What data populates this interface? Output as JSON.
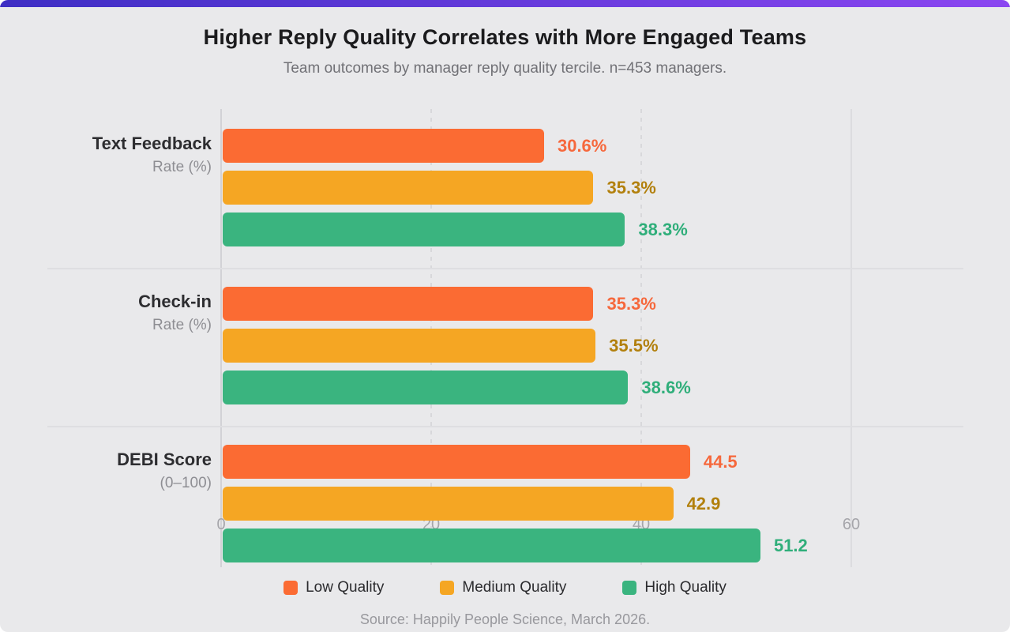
{
  "accent": {
    "gradient_from": "#3e2ec4",
    "gradient_to": "#8b46f1"
  },
  "chart_data": {
    "type": "bar",
    "orientation": "horizontal",
    "title": "Higher Reply Quality Correlates with More Engaged Teams",
    "subtitle": "Team outcomes by manager reply quality tercile. n=453 managers.",
    "categories": [
      {
        "name": "Text Feedback Rate (%)",
        "lines": [
          "Text Feedback",
          "Rate (%)"
        ]
      },
      {
        "name": "Check-in Rate (%)",
        "lines": [
          "Check-in",
          "Rate (%)"
        ]
      },
      {
        "name": "DEBI Score (0–100)",
        "lines": [
          "DEBI Score",
          "(0–100)"
        ]
      }
    ],
    "series": [
      {
        "name": "Low Quality",
        "color": "#fb6b33",
        "value_label_color": "#f6683c",
        "values": [
          30.6,
          35.3,
          44.5
        ],
        "value_labels": [
          "30.6%",
          "35.3%",
          "44.5"
        ]
      },
      {
        "name": "Medium Quality",
        "color": "#f5a623",
        "value_label_color": "#b2800d",
        "values": [
          35.3,
          35.5,
          42.9
        ],
        "value_labels": [
          "35.3%",
          "35.5%",
          "42.9"
        ]
      },
      {
        "name": "High Quality",
        "color": "#3ab47f",
        "value_label_color": "#2fae7a",
        "values": [
          38.3,
          38.6,
          51.2
        ],
        "value_labels": [
          "38.3%",
          "38.6%",
          "51.2"
        ]
      }
    ],
    "x_axis": {
      "ticks": [
        0,
        20,
        40,
        60
      ],
      "tick_labels": [
        "0",
        "20",
        "40",
        "60"
      ],
      "range": [
        0,
        70.6
      ],
      "grid": true
    },
    "legend": {
      "position": "bottom",
      "items": [
        {
          "label": "Low Quality",
          "color": "#fb6b33"
        },
        {
          "label": "Medium Quality",
          "color": "#f5a623"
        },
        {
          "label": "High Quality",
          "color": "#3ab47f"
        }
      ]
    },
    "source_note": "Source: Happily People Science, March 2026."
  }
}
